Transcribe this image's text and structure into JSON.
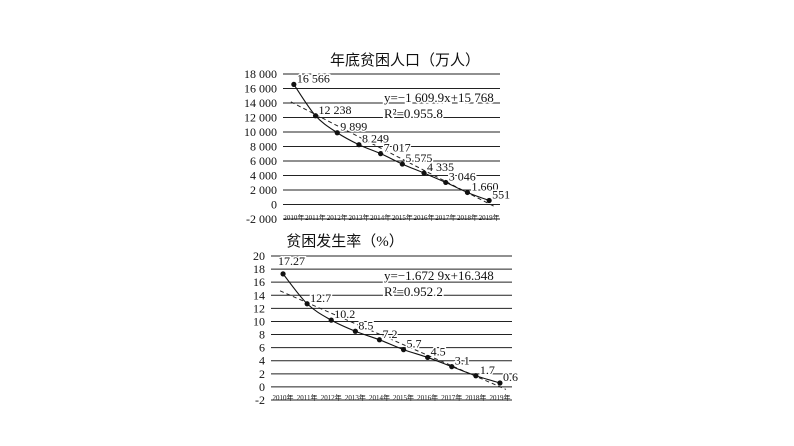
{
  "chart_data": [
    {
      "type": "line",
      "title": "年底贫困人口（万人）",
      "x": [
        "2010年",
        "2011年",
        "2012年",
        "2013年",
        "2014年",
        "2015年",
        "2016年",
        "2017年",
        "2018年",
        "2019年"
      ],
      "values": [
        16566,
        12238,
        9899,
        8249,
        7017,
        5575,
        4335,
        3046,
        1660,
        551
      ],
      "value_labels": [
        "16 566",
        "12 238",
        "9 899",
        "8 249",
        "7 017",
        "5 575",
        "4 335",
        "3 046",
        "1 660",
        "551"
      ],
      "ylim": [
        -2000,
        18000
      ],
      "yticks": [
        -2000,
        0,
        2000,
        4000,
        6000,
        8000,
        10000,
        12000,
        14000,
        16000,
        18000
      ],
      "ytick_labels": [
        "-2 000",
        "0",
        "2 000",
        "4 000",
        "6 000",
        "8 000",
        "10 000",
        "12 000",
        "14 000",
        "16 000",
        "18 000"
      ],
      "trendline": {
        "slope": -1609.9,
        "intercept": 15768
      },
      "equation": "y=−1 609.9x+15 768",
      "r2_label": "R²=0.955 8",
      "grid": true
    },
    {
      "type": "line",
      "title": "贫困发生率（%）",
      "x": [
        "2010年",
        "2011年",
        "2012年",
        "2013年",
        "2014年",
        "2015年",
        "2016年",
        "2017年",
        "2018年",
        "2019年"
      ],
      "values": [
        17.27,
        12.7,
        10.2,
        8.5,
        7.2,
        5.7,
        4.5,
        3.1,
        1.7,
        0.6
      ],
      "value_labels": [
        "17.27",
        "12.7",
        "10.2",
        "8.5",
        "7.2",
        "5.7",
        "4.5",
        "3.1",
        "1.7",
        "0.6"
      ],
      "ylim": [
        -2,
        20
      ],
      "yticks": [
        -2,
        0,
        2,
        4,
        6,
        8,
        10,
        12,
        14,
        16,
        18,
        20
      ],
      "ytick_labels": [
        "-2",
        "0",
        "2",
        "4",
        "6",
        "8",
        "10",
        "12",
        "14",
        "16",
        "18",
        "20"
      ],
      "trendline": {
        "slope": -1.6729,
        "intercept": 16.348
      },
      "equation": "y=−1.672 9x+16.348",
      "r2_label": "R²=0.952 2",
      "grid": true
    }
  ]
}
